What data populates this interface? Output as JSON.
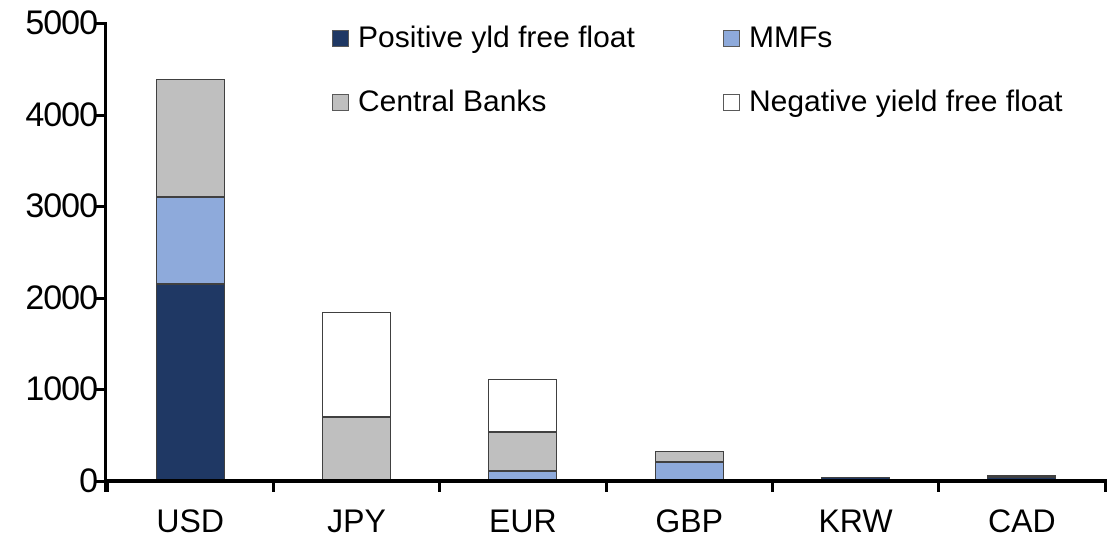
{
  "chart_data": {
    "type": "bar",
    "stacked": true,
    "title": "",
    "xlabel": "",
    "ylabel": "",
    "categories": [
      "USD",
      "JPY",
      "EUR",
      "GBP",
      "KRW",
      "CAD"
    ],
    "series": [
      {
        "name": "Positive yld free float",
        "color": "#1F3864",
        "values": [
          2150,
          0,
          0,
          0,
          45,
          40
        ]
      },
      {
        "name": "MMFs",
        "color": "#8EAADB",
        "values": [
          950,
          0,
          110,
          210,
          0,
          0
        ]
      },
      {
        "name": "Central Banks",
        "color": "#BFBFBF",
        "values": [
          1290,
          700,
          425,
          120,
          0,
          25
        ]
      },
      {
        "name": "Negative yield free float",
        "color": "#FFFFFF",
        "values": [
          0,
          1150,
          580,
          0,
          0,
          0
        ]
      }
    ],
    "category_totals": [
      4390,
      1850,
      1115,
      330,
      45,
      65
    ],
    "stack_order_bottom_to_top": [
      "Positive yld free float",
      "MMFs",
      "Central Banks",
      "Negative yield free float"
    ],
    "ylim": [
      0,
      5000
    ],
    "yticks": [
      0,
      1000,
      2000,
      3000,
      4000,
      5000
    ],
    "grid": false,
    "legend_position": "top",
    "legend_layout": "2-columns-2-rows",
    "legend_order": [
      "Positive yld free float",
      "MMFs",
      "Central Banks",
      "Negative yield free float"
    ]
  },
  "colors": {
    "axis": "#000000",
    "text": "#000000",
    "segment_border": "#404040",
    "background": "#FFFFFF",
    "navy": "#1F3864",
    "light_blue": "#8EAADB",
    "gray": "#BFBFBF",
    "white": "#FFFFFF"
  }
}
